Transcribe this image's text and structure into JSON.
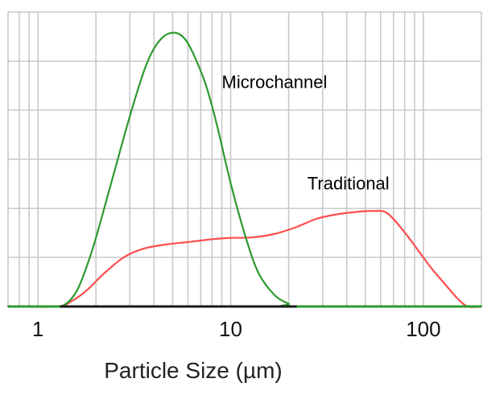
{
  "chart_data": {
    "type": "line",
    "xscale": "log",
    "xlim": [
      0.7,
      200
    ],
    "ylim": [
      0,
      100
    ],
    "grid": true,
    "xlabel": "Particle Size (µm)",
    "ylabel": "",
    "x_tick_labels": [
      "1",
      "10",
      "100"
    ],
    "x_tick_values": [
      1,
      10,
      100
    ],
    "series": [
      {
        "name": "Microchannel",
        "color": "#2e9a2e",
        "points": [
          [
            0.7,
            0
          ],
          [
            1.2,
            0
          ],
          [
            1.4,
            1
          ],
          [
            1.6,
            6
          ],
          [
            1.8,
            15
          ],
          [
            2.0,
            25
          ],
          [
            2.4,
            45
          ],
          [
            2.8,
            62
          ],
          [
            3.2,
            76
          ],
          [
            3.6,
            87
          ],
          [
            4.0,
            94
          ],
          [
            4.5,
            98.5
          ],
          [
            5.0,
            99.8
          ],
          [
            5.5,
            99
          ],
          [
            6.0,
            96
          ],
          [
            6.7,
            89
          ],
          [
            7.5,
            80
          ],
          [
            8.5,
            66
          ],
          [
            10,
            45
          ],
          [
            12,
            25
          ],
          [
            14,
            12
          ],
          [
            17,
            4
          ],
          [
            20,
            1
          ],
          [
            22,
            0
          ],
          [
            200,
            0
          ]
        ]
      },
      {
        "name": "Traditional",
        "color": "#ff4d4d",
        "points": [
          [
            0.7,
            0
          ],
          [
            1.25,
            0
          ],
          [
            1.5,
            2
          ],
          [
            1.8,
            6
          ],
          [
            2.2,
            12
          ],
          [
            2.8,
            18
          ],
          [
            3.5,
            21
          ],
          [
            4.5,
            22.5
          ],
          [
            6,
            23.5
          ],
          [
            8,
            24.5
          ],
          [
            10,
            25
          ],
          [
            13,
            25.2
          ],
          [
            17,
            26.5
          ],
          [
            22,
            29
          ],
          [
            28,
            32
          ],
          [
            35,
            33.5
          ],
          [
            45,
            34.5
          ],
          [
            55,
            34.8
          ],
          [
            65,
            34
          ],
          [
            80,
            27
          ],
          [
            95,
            20
          ],
          [
            110,
            14
          ],
          [
            130,
            8
          ],
          [
            150,
            3
          ],
          [
            170,
            0
          ],
          [
            200,
            0
          ]
        ]
      }
    ],
    "annotations": [
      {
        "text": "Microchannel",
        "x": 9.0,
        "y": 82,
        "color": "#000000"
      },
      {
        "text": "Traditional",
        "x": 25.0,
        "y": 45,
        "color": "#000000"
      }
    ],
    "gridlines_x": [
      0.7,
      0.8,
      0.9,
      1,
      2,
      3,
      4,
      5,
      6,
      7,
      8,
      9,
      10,
      20,
      30,
      40,
      50,
      60,
      70,
      80,
      90,
      100,
      200
    ],
    "gridlines_y": [
      16.7,
      33.3,
      50,
      66.7,
      83.3,
      100
    ]
  }
}
